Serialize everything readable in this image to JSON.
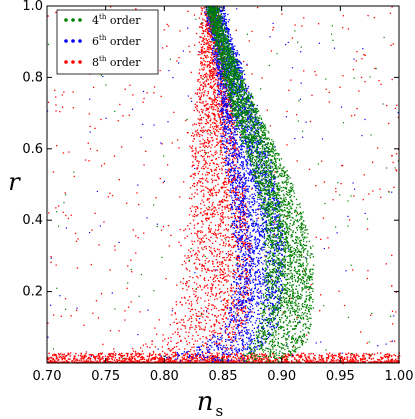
{
  "chart_data": {
    "type": "scatter",
    "xlabel": "n",
    "xlabel_sub": "s",
    "ylabel": "r",
    "xlim": [
      0.7,
      1.0
    ],
    "ylim": [
      0.0,
      1.0
    ],
    "xticks": [
      "0.70",
      "0.75",
      "0.80",
      "0.85",
      "0.90",
      "0.95",
      "1.00"
    ],
    "yticks": [
      "0.2",
      "0.4",
      "0.6",
      "0.8",
      "1.0"
    ],
    "grid": false,
    "legend_position": "top-left",
    "series": [
      {
        "name": "4th order",
        "label_base": "4",
        "label_sup": "th",
        "label_rest": " order",
        "color": "#008000",
        "band_ns_at_r": [
          {
            "r": 0.02,
            "lo": 0.865,
            "hi": 0.905
          },
          {
            "r": 0.05,
            "lo": 0.873,
            "hi": 0.918
          },
          {
            "r": 0.1,
            "lo": 0.88,
            "hi": 0.924
          },
          {
            "r": 0.2,
            "lo": 0.885,
            "hi": 0.926
          },
          {
            "r": 0.3,
            "lo": 0.886,
            "hi": 0.925
          },
          {
            "r": 0.4,
            "lo": 0.884,
            "hi": 0.919
          },
          {
            "r": 0.5,
            "lo": 0.878,
            "hi": 0.908
          },
          {
            "r": 0.6,
            "lo": 0.868,
            "hi": 0.895
          },
          {
            "r": 0.7,
            "lo": 0.858,
            "hi": 0.88
          },
          {
            "r": 0.8,
            "lo": 0.85,
            "hi": 0.866
          },
          {
            "r": 0.9,
            "lo": 0.843,
            "hi": 0.854
          },
          {
            "r": 1.0,
            "lo": 0.836,
            "hi": 0.845
          }
        ]
      },
      {
        "name": "6th order",
        "label_base": "6",
        "label_sup": "th",
        "label_rest": " order",
        "color": "#0000ff",
        "band_ns_at_r": [
          {
            "r": 0.02,
            "lo": 0.8,
            "hi": 0.87
          },
          {
            "r": 0.05,
            "lo": 0.83,
            "hi": 0.885
          },
          {
            "r": 0.1,
            "lo": 0.85,
            "hi": 0.895
          },
          {
            "r": 0.2,
            "lo": 0.858,
            "hi": 0.9
          },
          {
            "r": 0.3,
            "lo": 0.86,
            "hi": 0.902
          },
          {
            "r": 0.4,
            "lo": 0.858,
            "hi": 0.9
          },
          {
            "r": 0.5,
            "lo": 0.855,
            "hi": 0.895
          },
          {
            "r": 0.6,
            "lo": 0.85,
            "hi": 0.888
          },
          {
            "r": 0.7,
            "lo": 0.848,
            "hi": 0.878
          },
          {
            "r": 0.8,
            "lo": 0.845,
            "hi": 0.868
          },
          {
            "r": 0.9,
            "lo": 0.84,
            "hi": 0.858
          },
          {
            "r": 1.0,
            "lo": 0.834,
            "hi": 0.85
          }
        ]
      },
      {
        "name": "8th order",
        "label_base": "8",
        "label_sup": "th",
        "label_rest": " order",
        "color": "#ff0000",
        "band_ns_at_r": [
          {
            "r": 0.02,
            "lo": 0.72,
            "hi": 0.85
          },
          {
            "r": 0.05,
            "lo": 0.78,
            "hi": 0.86
          },
          {
            "r": 0.1,
            "lo": 0.8,
            "hi": 0.87
          },
          {
            "r": 0.2,
            "lo": 0.81,
            "hi": 0.873
          },
          {
            "r": 0.3,
            "lo": 0.815,
            "hi": 0.874
          },
          {
            "r": 0.4,
            "lo": 0.818,
            "hi": 0.872
          },
          {
            "r": 0.5,
            "lo": 0.82,
            "hi": 0.868
          },
          {
            "r": 0.6,
            "lo": 0.822,
            "hi": 0.862
          },
          {
            "r": 0.7,
            "lo": 0.825,
            "hi": 0.858
          },
          {
            "r": 0.8,
            "lo": 0.828,
            "hi": 0.852
          },
          {
            "r": 0.9,
            "lo": 0.83,
            "hi": 0.848
          },
          {
            "r": 1.0,
            "lo": 0.83,
            "hi": 0.846
          }
        ],
        "floor_r_range": [
          0.0,
          0.03
        ],
        "floor_ns_range": [
          0.7,
          1.0
        ]
      }
    ]
  }
}
